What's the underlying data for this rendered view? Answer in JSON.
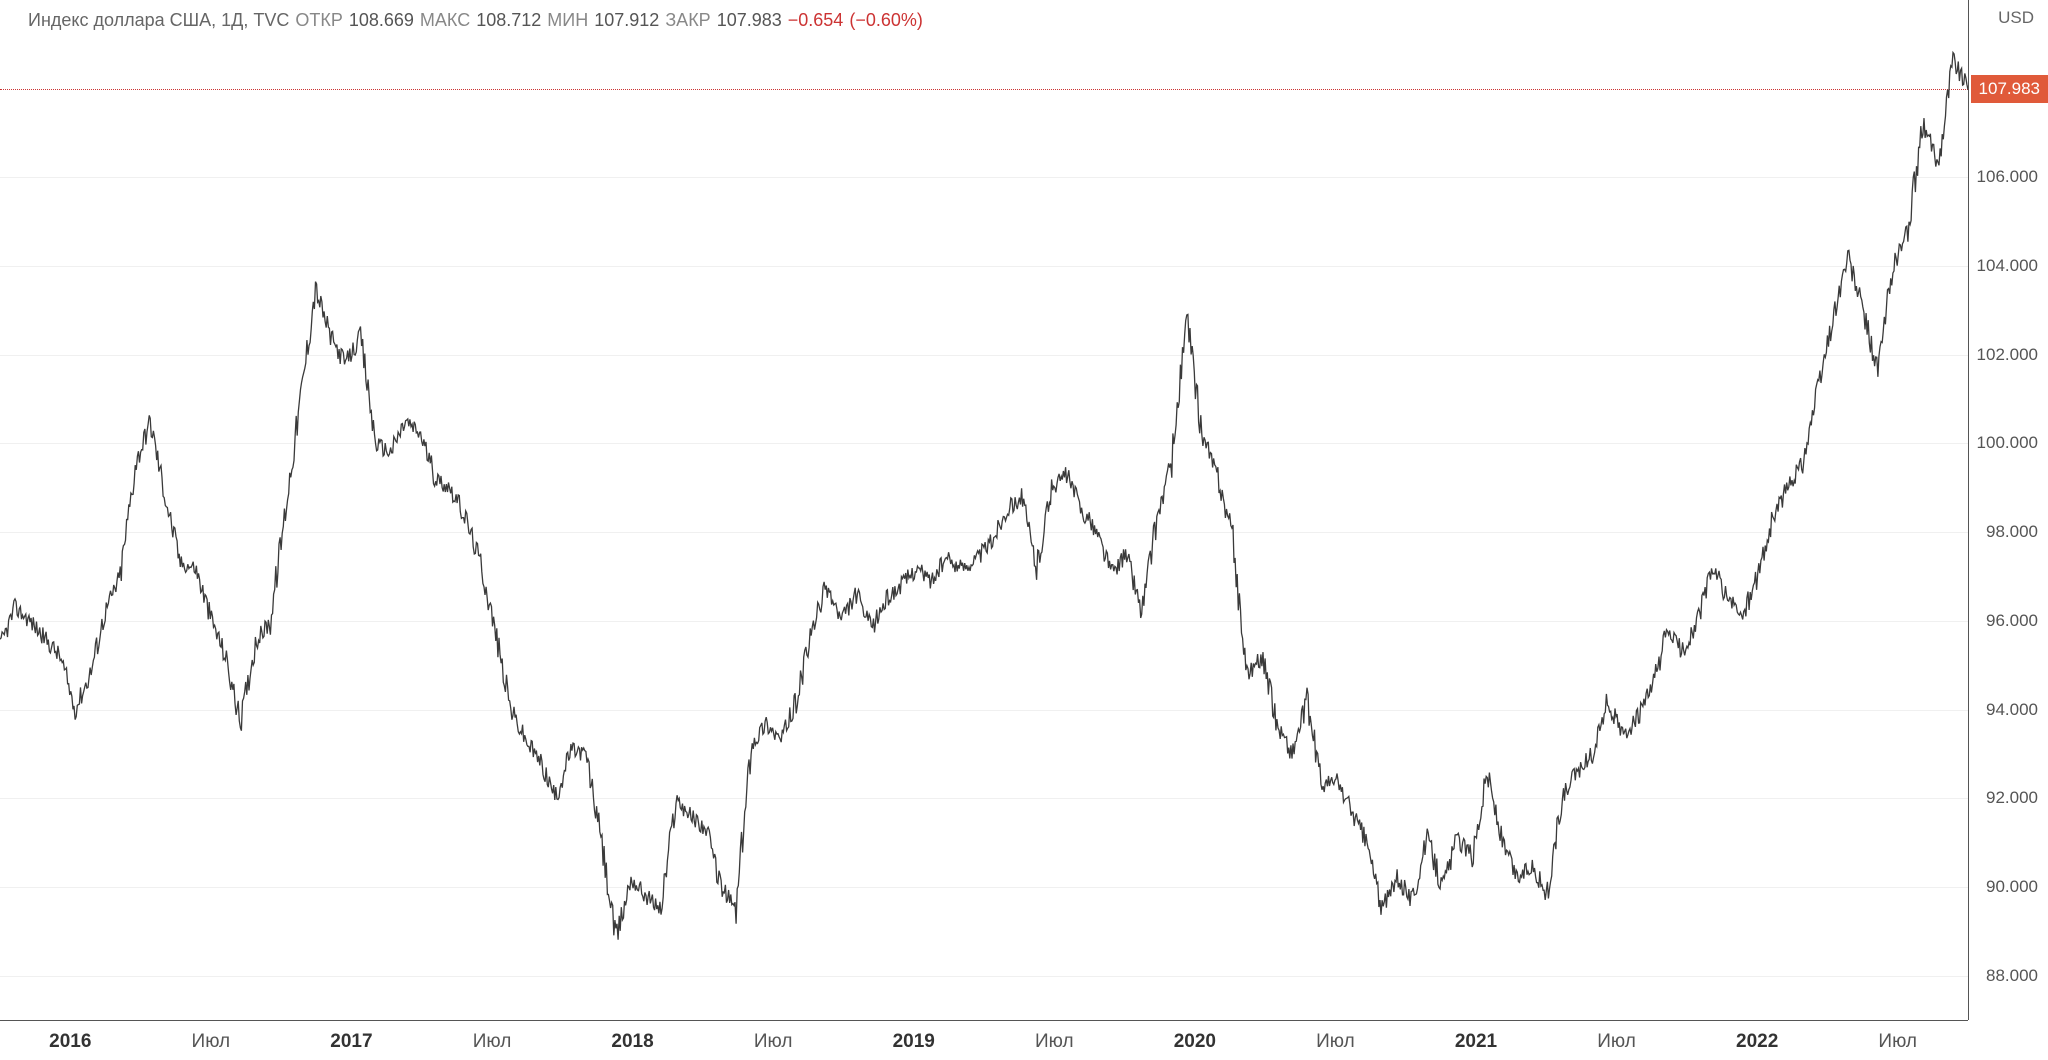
{
  "header": {
    "title": "Индекс доллара США, 1Д, TVC",
    "open_label": "ОТКР",
    "open_value": "108.669",
    "high_label": "МАКС",
    "high_value": "108.712",
    "low_label": "МИН",
    "low_value": "107.912",
    "close_label": "ЗАКР",
    "close_value": "107.983",
    "change_abs": "−0.654",
    "change_pct": "(−0.60%)"
  },
  "chart": {
    "type": "line",
    "y_unit": "USD",
    "ylim": [
      87.0,
      110.0
    ],
    "y_ticks": [
      88.0,
      90.0,
      92.0,
      94.0,
      96.0,
      98.0,
      100.0,
      102.0,
      104.0,
      106.0
    ],
    "y_tick_labels": [
      "88.000",
      "90.000",
      "92.000",
      "94.000",
      "96.000",
      "98.000",
      "100.000",
      "102.000",
      "104.000",
      "106.000"
    ],
    "current_price": 107.983,
    "current_price_label": "107.983",
    "price_line_color": "#cc3333",
    "badge_bg": "#e05a3a",
    "line_color": "#3a3a3a",
    "line_width": 1.3,
    "background_color": "#ffffff",
    "grid_color": "#f0f0f0",
    "x_range_months": [
      0,
      84
    ],
    "x_ticks": [
      {
        "pos": 3,
        "label": "2016",
        "bold": true
      },
      {
        "pos": 9,
        "label": "Июл",
        "bold": false
      },
      {
        "pos": 15,
        "label": "2017",
        "bold": true
      },
      {
        "pos": 21,
        "label": "Июл",
        "bold": false
      },
      {
        "pos": 27,
        "label": "2018",
        "bold": true
      },
      {
        "pos": 33,
        "label": "Июл",
        "bold": false
      },
      {
        "pos": 39,
        "label": "2019",
        "bold": true
      },
      {
        "pos": 45,
        "label": "Июл",
        "bold": false
      },
      {
        "pos": 51,
        "label": "2020",
        "bold": true
      },
      {
        "pos": 57,
        "label": "Июл",
        "bold": false
      },
      {
        "pos": 63,
        "label": "2021",
        "bold": true
      },
      {
        "pos": 69,
        "label": "Июл",
        "bold": false
      },
      {
        "pos": 75,
        "label": "2022",
        "bold": true
      },
      {
        "pos": 81,
        "label": "Июл",
        "bold": false
      }
    ],
    "series": [
      95.4,
      96.3,
      96.0,
      95.6,
      95.2,
      94.0,
      94.8,
      96.2,
      97.0,
      99.5,
      100.5,
      98.8,
      97.3,
      97.2,
      96.1,
      95.2,
      93.7,
      95.5,
      96.0,
      98.5,
      101.0,
      103.5,
      102.4,
      101.8,
      102.4,
      100.0,
      99.8,
      100.5,
      100.2,
      99.2,
      99.0,
      98.3,
      97.3,
      95.7,
      94.0,
      93.3,
      92.8,
      92.0,
      93.1,
      93.0,
      91.1,
      88.8,
      90.2,
      89.8,
      89.5,
      92.0,
      91.6,
      91.3,
      90.0,
      89.5,
      93.2,
      93.7,
      93.3,
      94.2,
      95.7,
      96.8,
      96.0,
      96.6,
      95.8,
      96.5,
      96.8,
      97.2,
      96.9,
      97.4,
      97.2,
      97.4,
      97.8,
      98.5,
      98.8,
      97.2,
      99.0,
      99.3,
      98.5,
      98.0,
      97.1,
      97.5,
      96.2,
      98.3,
      99.6,
      102.8,
      100.2,
      99.3,
      98.0,
      94.8,
      95.2,
      93.7,
      93.0,
      94.2,
      92.3,
      92.4,
      91.7,
      91.0,
      89.5,
      90.2,
      89.7,
      91.1,
      90.0,
      91.1,
      90.7,
      92.6,
      91.0,
      90.2,
      90.5,
      89.8,
      92.0,
      92.6,
      93.0,
      94.2,
      93.4,
      93.8,
      94.5,
      95.8,
      95.3,
      96.0,
      97.2,
      96.5,
      96.1,
      97.0,
      98.3,
      99.0,
      99.6,
      101.2,
      102.8,
      104.2,
      103.0,
      101.6,
      104.0,
      104.8,
      107.2,
      106.3,
      108.7,
      107.98
    ]
  }
}
